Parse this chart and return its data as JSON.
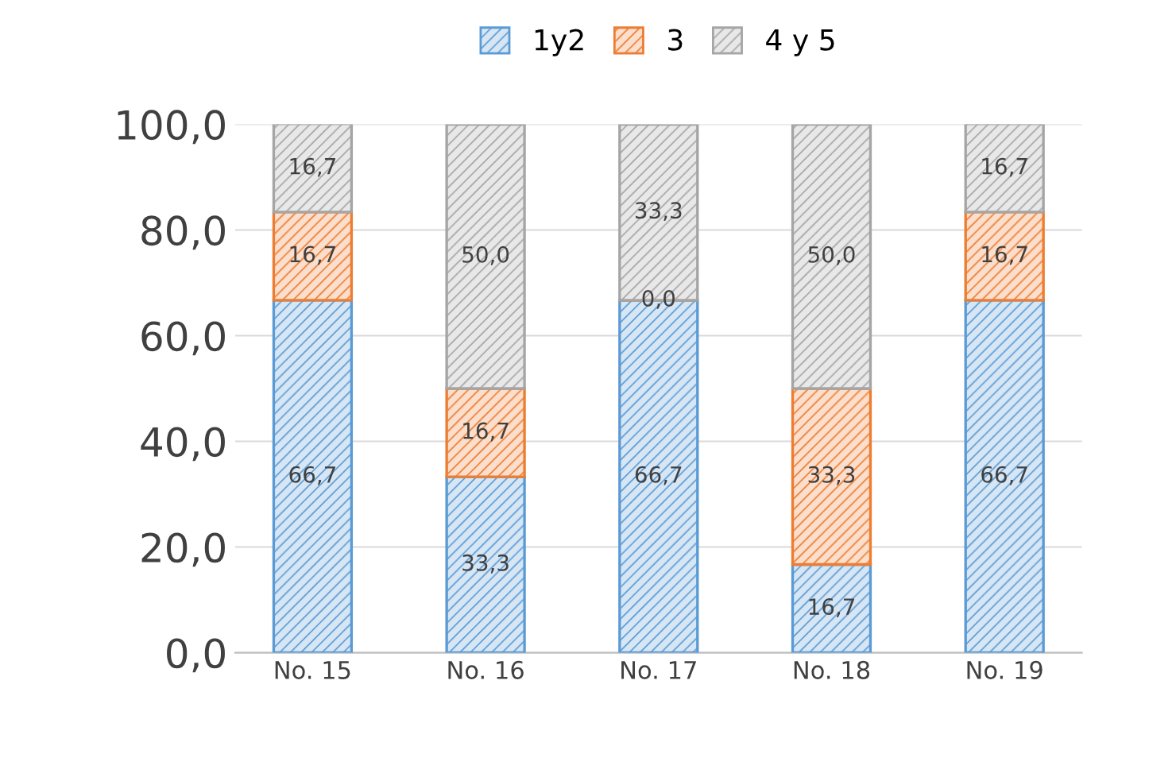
{
  "chart_data": {
    "type": "bar",
    "stacked": true,
    "categories": [
      "No. 15",
      "No. 16",
      "No. 17",
      "No. 18",
      "No. 19"
    ],
    "series": [
      {
        "name": "1y2",
        "color": "#5b9bd5",
        "values": [
          66.7,
          33.3,
          66.7,
          16.7,
          66.7
        ],
        "value_labels": [
          "66,7",
          "33,3",
          "66,7",
          "16,7",
          "66,7"
        ]
      },
      {
        "name": "3",
        "color": "#ed7d31",
        "values": [
          16.7,
          16.7,
          0.0,
          33.3,
          16.7
        ],
        "value_labels": [
          "16,7",
          "16,7",
          "0,0",
          "33,3",
          "16,7"
        ]
      },
      {
        "name": "4 y 5",
        "color": "#a5a5a5",
        "values": [
          16.7,
          50.0,
          33.3,
          50.0,
          16.7
        ],
        "value_labels": [
          "16,7",
          "50,0",
          "33,3",
          "50,0",
          "16,7"
        ]
      }
    ],
    "ylim": [
      0,
      100
    ],
    "yticks": [
      {
        "value": 0,
        "label": "0,0"
      },
      {
        "value": 20,
        "label": "20,0"
      },
      {
        "value": 40,
        "label": "40,0"
      },
      {
        "value": 60,
        "label": "60,0"
      },
      {
        "value": 80,
        "label": "80,0"
      },
      {
        "value": 100,
        "label": "100,0"
      }
    ],
    "grid": "y",
    "legend": "top"
  }
}
